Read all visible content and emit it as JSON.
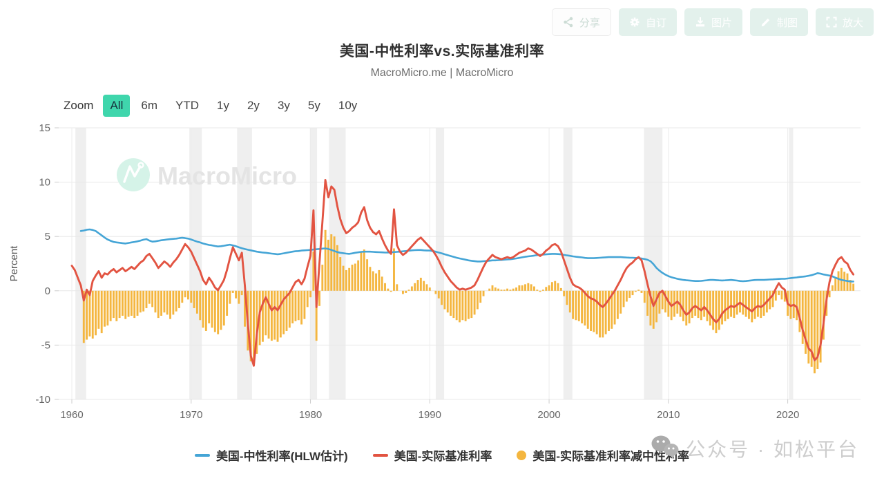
{
  "header": {
    "title": "美国-中性利率vs.实际基准利率",
    "subtitle": "MacroMicro.me | MacroMicro"
  },
  "toolbar": {
    "buttons": [
      {
        "label": "分享",
        "icon": "share-nodes-icon"
      },
      {
        "label": "自订",
        "icon": "gear-icon"
      },
      {
        "label": "图片",
        "icon": "download-icon"
      },
      {
        "label": "制图",
        "icon": "pencil-icon"
      },
      {
        "label": "放大",
        "icon": "expand-icon"
      }
    ]
  },
  "zoom_bar": {
    "label": "Zoom",
    "options": [
      "All",
      "6m",
      "YTD",
      "1y",
      "2y",
      "3y",
      "5y",
      "10y"
    ],
    "active": "All",
    "active_color": "#3fd6ac"
  },
  "brand_watermark": {
    "logo": "macromicro-logo",
    "text": "MacroMicro",
    "circle_color": "#d5f3e8"
  },
  "overlay_watermark": {
    "icon": "wechat-icon",
    "text": "公众号 · 如松平台"
  },
  "legend": {
    "items": [
      {
        "label": "美国-中性利率(HLW估计)",
        "marker": "line",
        "color": "#45a5d6"
      },
      {
        "label": "美国-实际基准利率",
        "marker": "line",
        "color": "#e25442"
      },
      {
        "label": "美国-实际基准利率减中性利率",
        "marker": "circle",
        "color": "#f4b63f"
      }
    ]
  },
  "chart_data": {
    "type": "mixed",
    "title": "美国-中性利率vs.实际基准利率",
    "ylabel": "Percent",
    "ylim": [
      -10,
      15
    ],
    "yticks": [
      15,
      10,
      5,
      0,
      -5,
      -10
    ],
    "xlim": [
      1958.9,
      2026.1
    ],
    "xticks": [
      1960,
      1970,
      1980,
      1990,
      2000,
      2010,
      2020
    ],
    "grid": true,
    "legend_position": "bottom",
    "recessions": [
      [
        1960.3,
        1961.2
      ],
      [
        1969.85,
        1970.9
      ],
      [
        1973.85,
        1975.1
      ],
      [
        1979.95,
        1980.55
      ],
      [
        1981.55,
        1982.95
      ],
      [
        1990.5,
        1991.2
      ],
      [
        2001.2,
        2001.95
      ],
      [
        2007.95,
        2009.5
      ],
      [
        2020.1,
        2020.45
      ]
    ],
    "series": [
      {
        "name": "美国-中性利率(HLW估计)",
        "type": "line",
        "color": "#45a5d6",
        "x_start": 1960,
        "x_step": 0.25,
        "values": [
          null,
          null,
          null,
          5.5,
          5.55,
          5.62,
          5.65,
          5.6,
          5.5,
          5.3,
          5.1,
          4.9,
          4.72,
          4.6,
          4.5,
          4.45,
          4.42,
          4.38,
          4.35,
          4.4,
          4.45,
          4.5,
          4.55,
          4.62,
          4.7,
          4.75,
          4.62,
          4.52,
          4.55,
          4.6,
          4.65,
          4.68,
          4.72,
          4.75,
          4.78,
          4.8,
          4.85,
          4.88,
          4.85,
          4.8,
          4.72,
          4.62,
          4.52,
          4.45,
          4.35,
          4.28,
          4.22,
          4.18,
          4.12,
          4.08,
          4.1,
          4.15,
          4.2,
          4.24,
          4.18,
          4.1,
          4.0,
          3.92,
          3.84,
          3.78,
          3.72,
          3.66,
          3.6,
          3.56,
          3.52,
          3.5,
          3.46,
          3.42,
          3.4,
          3.36,
          3.4,
          3.45,
          3.5,
          3.55,
          3.6,
          3.64,
          3.66,
          3.7,
          3.72,
          3.74,
          3.76,
          3.8,
          3.82,
          3.85,
          3.88,
          3.9,
          3.85,
          3.76,
          3.66,
          3.56,
          3.5,
          3.46,
          3.42,
          3.4,
          3.44,
          3.5,
          3.54,
          3.58,
          3.6,
          3.6,
          3.6,
          3.58,
          3.56,
          3.55,
          3.54,
          3.52,
          3.52,
          3.54,
          3.56,
          3.58,
          3.6,
          3.63,
          3.66,
          3.69,
          3.72,
          3.74,
          3.75,
          3.75,
          3.72,
          3.7,
          3.7,
          3.66,
          3.6,
          3.52,
          3.45,
          3.36,
          3.28,
          3.2,
          3.12,
          3.04,
          2.98,
          2.92,
          2.86,
          2.8,
          2.76,
          2.73,
          2.7,
          2.7,
          2.72,
          2.74,
          2.77,
          2.8,
          2.8,
          2.82,
          2.84,
          2.86,
          2.88,
          2.9,
          2.94,
          2.98,
          3.03,
          3.08,
          3.13,
          3.17,
          3.2,
          3.24,
          3.28,
          3.3,
          3.33,
          3.35,
          3.38,
          3.4,
          3.4,
          3.38,
          3.35,
          3.3,
          3.26,
          3.22,
          3.17,
          3.13,
          3.1,
          3.07,
          3.03,
          3.0,
          3.0,
          3.0,
          3.02,
          3.04,
          3.06,
          3.08,
          3.1,
          3.1,
          3.1,
          3.1,
          3.1,
          3.08,
          3.06,
          3.05,
          3.04,
          3.02,
          3.0,
          2.97,
          2.92,
          2.85,
          2.72,
          2.45,
          2.1,
          1.85,
          1.65,
          1.48,
          1.35,
          1.25,
          1.17,
          1.1,
          1.05,
          1.0,
          0.97,
          0.95,
          0.92,
          0.9,
          0.9,
          0.91,
          0.94,
          0.97,
          1.0,
          1.0,
          0.98,
          0.96,
          0.95,
          0.96,
          0.98,
          1.0,
          0.97,
          0.94,
          0.9,
          0.88,
          0.9,
          0.93,
          0.96,
          0.99,
          1.0,
          1.0,
          1.0,
          1.02,
          1.04,
          1.05,
          1.07,
          1.09,
          1.1,
          1.1,
          1.13,
          1.17,
          1.2,
          1.23,
          1.27,
          1.3,
          1.33,
          1.38,
          1.44,
          1.52,
          1.62,
          1.58,
          1.5,
          1.45,
          1.4,
          1.32,
          1.2,
          1.1,
          1.0,
          0.95,
          0.9,
          0.86,
          0.85
        ]
      },
      {
        "name": "美国-实际基准利率",
        "type": "line",
        "color": "#e25442",
        "x_start": 1960,
        "x_step": 0.25,
        "values": [
          2.3,
          1.9,
          1.2,
          0.5,
          -0.9,
          0.1,
          -0.4,
          0.9,
          1.4,
          1.8,
          1.2,
          1.6,
          1.5,
          1.8,
          2.0,
          1.7,
          1.9,
          2.1,
          1.8,
          2.0,
          2.2,
          2.0,
          2.3,
          2.6,
          2.8,
          3.2,
          3.4,
          3.0,
          2.6,
          2.1,
          2.4,
          2.7,
          2.5,
          2.2,
          2.6,
          2.9,
          3.3,
          3.8,
          4.3,
          4.0,
          3.6,
          3.0,
          2.4,
          1.8,
          1.0,
          0.6,
          1.2,
          0.8,
          0.3,
          0.05,
          0.5,
          1.0,
          1.9,
          3.0,
          4.0,
          3.4,
          2.8,
          3.5,
          0.5,
          -3.0,
          -6.0,
          -6.9,
          -4.0,
          -2.0,
          -1.2,
          -0.6,
          -1.2,
          -1.8,
          -1.5,
          -1.8,
          -1.3,
          -0.8,
          -0.5,
          -0.2,
          0.3,
          0.8,
          1.0,
          0.6,
          1.1,
          2.2,
          3.2,
          7.4,
          -1.5,
          2.5,
          6.3,
          10.2,
          8.6,
          9.6,
          9.3,
          7.8,
          6.6,
          5.8,
          5.3,
          5.5,
          5.8,
          6.0,
          6.3,
          7.2,
          7.7,
          6.5,
          5.8,
          5.4,
          5.2,
          5.5,
          4.8,
          4.2,
          3.7,
          3.4,
          7.5,
          4.2,
          3.6,
          3.3,
          3.5,
          3.8,
          4.1,
          4.4,
          4.7,
          4.9,
          4.6,
          4.3,
          4.0,
          3.7,
          3.3,
          2.8,
          2.2,
          1.7,
          1.3,
          0.9,
          0.6,
          0.3,
          0.1,
          0.2,
          0.1,
          0.2,
          0.3,
          0.5,
          1.0,
          1.6,
          2.2,
          2.7,
          3.0,
          3.3,
          3.1,
          3.0,
          2.9,
          3.0,
          3.1,
          3.0,
          3.1,
          3.3,
          3.5,
          3.6,
          3.7,
          3.9,
          3.8,
          3.6,
          3.4,
          3.2,
          3.4,
          3.7,
          3.9,
          4.2,
          4.3,
          4.1,
          3.6,
          2.8,
          2.0,
          1.2,
          0.6,
          0.4,
          0.3,
          0.1,
          -0.2,
          -0.5,
          -0.7,
          -0.8,
          -1.0,
          -1.3,
          -1.5,
          -1.2,
          -0.8,
          -0.4,
          0.0,
          0.5,
          1.0,
          1.6,
          2.1,
          2.4,
          2.6,
          2.9,
          3.1,
          2.8,
          1.8,
          0.6,
          -0.5,
          -1.4,
          -0.8,
          -0.2,
          0.0,
          -0.5,
          -1.0,
          -1.4,
          -1.2,
          -1.0,
          -1.3,
          -1.8,
          -2.2,
          -2.0,
          -1.6,
          -1.4,
          -1.6,
          -1.8,
          -1.5,
          -1.8,
          -2.2,
          -2.6,
          -2.9,
          -2.6,
          -2.1,
          -1.8,
          -1.6,
          -1.4,
          -1.5,
          -1.3,
          -1.1,
          -1.3,
          -1.5,
          -1.7,
          -1.9,
          -1.6,
          -1.4,
          -1.5,
          -1.3,
          -1.0,
          -0.7,
          -0.4,
          0.2,
          0.7,
          0.3,
          0.1,
          -1.2,
          -1.4,
          -1.3,
          -1.5,
          -2.5,
          -3.6,
          -4.5,
          -5.3,
          -5.6,
          -6.4,
          -6.1,
          -5.0,
          -3.0,
          -0.8,
          0.8,
          1.8,
          2.4,
          2.9,
          3.1,
          2.7,
          2.5,
          1.9,
          1.5
        ]
      },
      {
        "name": "美国-实际基准利率减中性利率",
        "type": "bar",
        "color": "#f4b63f",
        "x_start": 1960,
        "x_step": 0.25,
        "values": [
          null,
          null,
          null,
          null,
          -4.8,
          -4.5,
          -4.2,
          -4.4,
          -4.1,
          -3.5,
          -3.9,
          -3.3,
          -3.2,
          -2.8,
          -2.5,
          -2.8,
          -2.5,
          -2.3,
          -2.6,
          -2.4,
          -2.3,
          -2.5,
          -2.3,
          -2.0,
          -1.9,
          -1.6,
          -1.2,
          -1.5,
          -2.0,
          -2.5,
          -2.3,
          -2.0,
          -2.2,
          -2.6,
          -2.2,
          -1.9,
          -1.6,
          -1.1,
          -0.6,
          -0.8,
          -1.1,
          -1.6,
          -2.1,
          -2.7,
          -3.4,
          -3.7,
          -3.0,
          -3.4,
          -3.8,
          -4.0,
          -3.6,
          -3.2,
          -2.3,
          -1.2,
          -0.2,
          -0.7,
          -1.2,
          -0.4,
          -3.3,
          -5.5,
          -6.5,
          -6.7,
          -5.8,
          -5.0,
          -4.7,
          -4.1,
          -4.4,
          -4.6,
          -4.5,
          -4.7,
          -4.3,
          -4.0,
          -3.7,
          -3.4,
          -3.0,
          -2.8,
          -2.7,
          -3.1,
          -2.6,
          -1.5,
          -0.6,
          3.6,
          -4.6,
          -1.4,
          2.4,
          5.6,
          4.7,
          5.2,
          5.0,
          4.2,
          3.1,
          2.3,
          1.9,
          2.1,
          2.4,
          2.5,
          2.8,
          3.6,
          3.8,
          2.9,
          2.2,
          1.8,
          1.6,
          1.9,
          1.3,
          0.7,
          0.2,
          -0.1,
          3.9,
          0.6,
          0.0,
          -0.3,
          -0.2,
          0.1,
          0.4,
          0.7,
          1.0,
          1.2,
          0.9,
          0.6,
          0.3,
          0.0,
          -0.3,
          -0.7,
          -1.3,
          -1.7,
          -2.0,
          -2.3,
          -2.5,
          -2.7,
          -2.9,
          -2.7,
          -2.8,
          -2.6,
          -2.5,
          -2.2,
          -1.7,
          -1.1,
          -0.5,
          0.0,
          0.2,
          0.5,
          0.3,
          0.2,
          0.1,
          0.1,
          0.2,
          0.1,
          0.2,
          0.3,
          0.5,
          0.5,
          0.6,
          0.7,
          0.6,
          0.4,
          0.1,
          -0.1,
          0.1,
          0.35,
          0.5,
          0.8,
          0.9,
          0.7,
          0.25,
          -0.5,
          -1.3,
          -2.0,
          -2.6,
          -2.7,
          -2.8,
          -3.0,
          -3.2,
          -3.5,
          -3.7,
          -3.8,
          -4.0,
          -4.3,
          -4.3,
          -4.0,
          -3.7,
          -3.5,
          -3.1,
          -2.6,
          -2.1,
          -1.5,
          -1.0,
          -0.65,
          -0.4,
          -0.1,
          0.1,
          -0.2,
          -1.1,
          -2.3,
          -3.2,
          -3.5,
          -2.9,
          -2.1,
          -1.7,
          -2.0,
          -2.4,
          -2.7,
          -2.4,
          -2.1,
          -2.4,
          -2.8,
          -3.2,
          -3.0,
          -2.5,
          -2.3,
          -2.5,
          -2.7,
          -2.4,
          -2.8,
          -3.2,
          -3.6,
          -3.9,
          -3.6,
          -3.1,
          -2.8,
          -2.6,
          -2.4,
          -2.5,
          -2.2,
          -2.0,
          -2.2,
          -2.4,
          -2.6,
          -2.9,
          -2.6,
          -2.4,
          -2.5,
          -2.3,
          -2.0,
          -1.7,
          -1.5,
          -0.9,
          -0.4,
          -0.8,
          -1.0,
          -2.3,
          -2.6,
          -2.5,
          -2.7,
          -3.8,
          -4.9,
          -5.8,
          -6.7,
          -7.0,
          -7.6,
          -7.2,
          -6.6,
          -4.5,
          -2.3,
          -0.6,
          0.5,
          1.2,
          1.8,
          2.1,
          1.75,
          1.6,
          1.0,
          0.65
        ]
      }
    ]
  }
}
